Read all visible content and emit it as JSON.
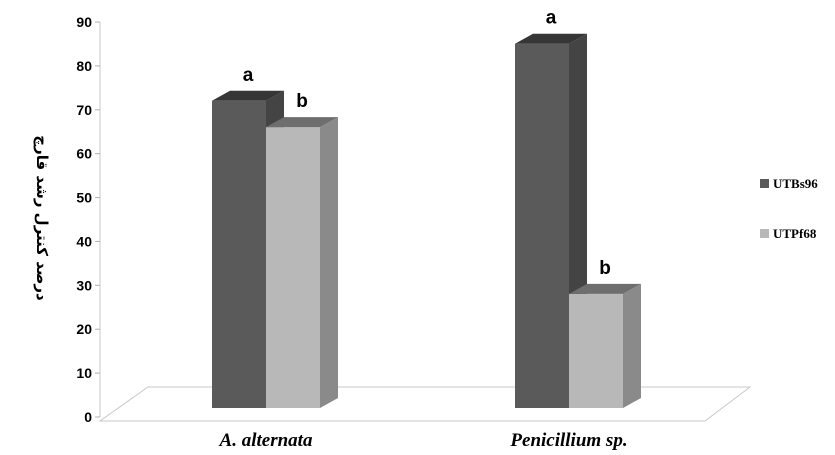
{
  "chart_data": {
    "type": "bar",
    "title": "",
    "xlabel": "",
    "ylabel": "درصد کنترل رشد قارچ",
    "categories": [
      "A. alternata",
      "Penicillium sp."
    ],
    "series": [
      {
        "name": "UTBs96",
        "values": [
          70,
          83
        ],
        "labels": [
          "a",
          "a"
        ],
        "color": "#5a5a5a"
      },
      {
        "name": "UTPf68",
        "values": [
          64,
          26
        ],
        "labels": [
          "b",
          "b"
        ],
        "color": "#b8b8b8"
      }
    ],
    "ylim": [
      0,
      90
    ],
    "yticks": [
      0,
      10,
      20,
      30,
      40,
      50,
      60,
      70,
      80,
      90
    ],
    "grid": false,
    "legend_position": "right",
    "style": "3d-column"
  }
}
